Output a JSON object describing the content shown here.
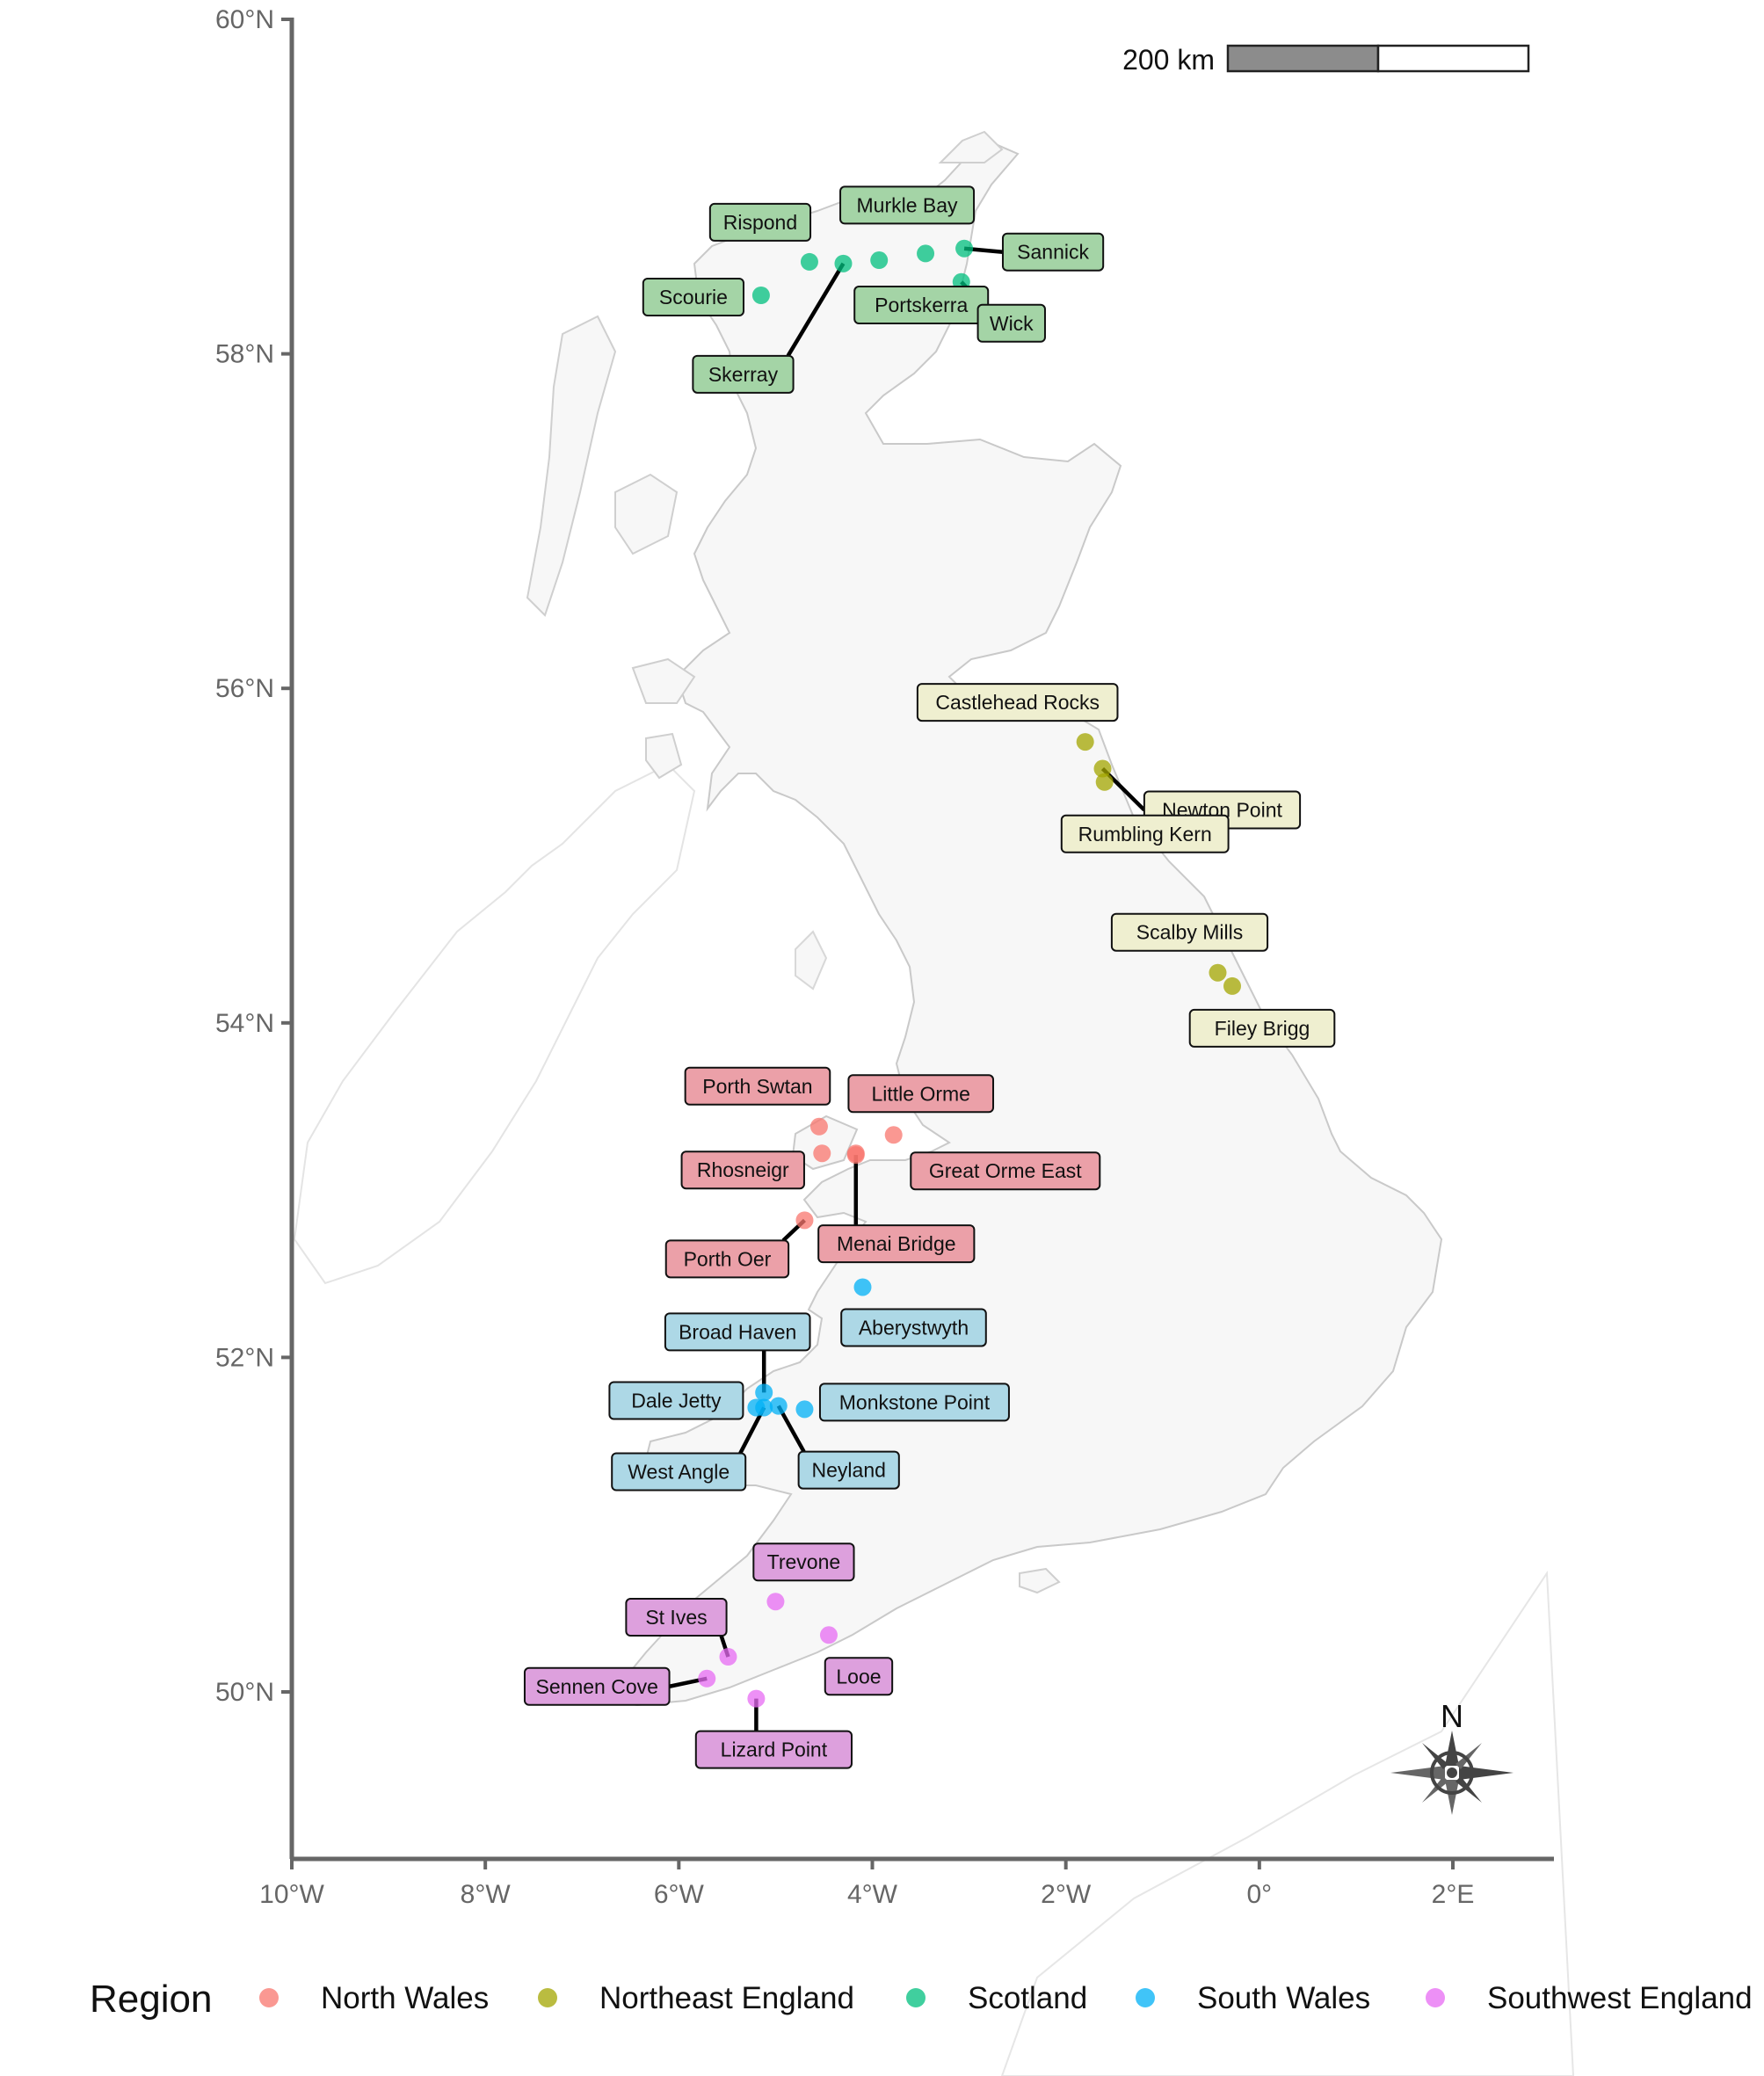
{
  "axes": {
    "x_ticks": [
      {
        "value": -10,
        "label": "10°W"
      },
      {
        "value": -8,
        "label": "8°W"
      },
      {
        "value": -6,
        "label": "6°W"
      },
      {
        "value": -4,
        "label": "4°W"
      },
      {
        "value": -2,
        "label": "2°W"
      },
      {
        "value": 0,
        "label": "0°"
      },
      {
        "value": 2,
        "label": "2°E"
      }
    ],
    "y_ticks": [
      {
        "value": 60,
        "label": "60°N"
      },
      {
        "value": 58,
        "label": "58°N"
      },
      {
        "value": 56,
        "label": "56°N"
      },
      {
        "value": 54,
        "label": "54°N"
      },
      {
        "value": 52,
        "label": "52°N"
      },
      {
        "value": 50,
        "label": "50°N"
      }
    ],
    "xlim": [
      -10,
      2.95
    ],
    "ylim": [
      49.0,
      60.0
    ]
  },
  "scale_bar": {
    "label": "200 km"
  },
  "north_arrow": {
    "label": "N"
  },
  "legend": {
    "title": "Region",
    "items": [
      {
        "name": "North Wales",
        "color": "#F8766D"
      },
      {
        "name": "Northeast England",
        "color": "#A3A500"
      },
      {
        "name": "Scotland",
        "color": "#00BF7D"
      },
      {
        "name": "South Wales",
        "color": "#00B0F6"
      },
      {
        "name": "Southwest England",
        "color": "#E76BF3"
      }
    ]
  },
  "chart_data": {
    "type": "scatter",
    "map": "Great Britain coastline",
    "series": [
      {
        "name": "Scotland",
        "color": "#00BF7D",
        "label_fill": "#A4D4A6",
        "points": [
          {
            "label": "Scourie",
            "lon": -5.15,
            "lat": 58.35
          },
          {
            "label": "Rispond",
            "lon": -4.65,
            "lat": 58.55
          },
          {
            "label": "Skerray",
            "lon": -4.3,
            "lat": 58.54
          },
          {
            "label": "Portskerra",
            "lon": -3.93,
            "lat": 58.56
          },
          {
            "label": "Murkle Bay",
            "lon": -3.45,
            "lat": 58.6
          },
          {
            "label": "Sannick",
            "lon": -3.05,
            "lat": 58.63
          },
          {
            "label": "Wick",
            "lon": -3.08,
            "lat": 58.43
          }
        ]
      },
      {
        "name": "Northeast England",
        "color": "#A3A500",
        "label_fill": "#EFEFD0",
        "points": [
          {
            "label": "Castlehead Rocks",
            "lon": -1.8,
            "lat": 55.68
          },
          {
            "label": "Newton Point",
            "lon": -1.62,
            "lat": 55.52
          },
          {
            "label": "Rumbling Kern",
            "lon": -1.6,
            "lat": 55.44
          },
          {
            "label": "Scalby Mills",
            "lon": -0.43,
            "lat": 54.3
          },
          {
            "label": "Filey Brigg",
            "lon": -0.28,
            "lat": 54.22
          }
        ]
      },
      {
        "name": "North Wales",
        "color": "#F8766D",
        "label_fill": "#EBA0A8",
        "points": [
          {
            "label": "Porth Swtan",
            "lon": -4.55,
            "lat": 53.38
          },
          {
            "label": "Little Orme",
            "lon": -3.78,
            "lat": 53.33
          },
          {
            "label": "Rhosneigr",
            "lon": -4.52,
            "lat": 53.22
          },
          {
            "label": "Great Orme East",
            "lon": -4.17,
            "lat": 53.22
          },
          {
            "label": "Porth Oer",
            "lon": -4.7,
            "lat": 52.82
          },
          {
            "label": "Menai Bridge",
            "lon": -4.17,
            "lat": 53.21
          }
        ]
      },
      {
        "name": "South Wales",
        "color": "#00B0F6",
        "label_fill": "#ADD8E6",
        "points": [
          {
            "label": "Aberystwyth",
            "lon": -4.1,
            "lat": 52.42
          },
          {
            "label": "Broad Haven",
            "lon": -5.12,
            "lat": 51.79
          },
          {
            "label": "Dale Jetty",
            "lon": -5.2,
            "lat": 51.7
          },
          {
            "label": "Monkstone Point",
            "lon": -4.7,
            "lat": 51.69
          },
          {
            "label": "West Angle",
            "lon": -5.12,
            "lat": 51.7
          },
          {
            "label": "Neyland",
            "lon": -4.97,
            "lat": 51.71
          }
        ]
      },
      {
        "name": "Southwest England",
        "color": "#E76BF3",
        "label_fill": "#DDA0DD",
        "points": [
          {
            "label": "Trevone",
            "lon": -5.0,
            "lat": 50.54
          },
          {
            "label": "St Ives",
            "lon": -5.49,
            "lat": 50.21
          },
          {
            "label": "Looe",
            "lon": -4.45,
            "lat": 50.34
          },
          {
            "label": "Sennen Cove",
            "lon": -5.71,
            "lat": 50.08
          },
          {
            "label": "Lizard Point",
            "lon": -5.2,
            "lat": 49.96
          }
        ]
      }
    ]
  }
}
